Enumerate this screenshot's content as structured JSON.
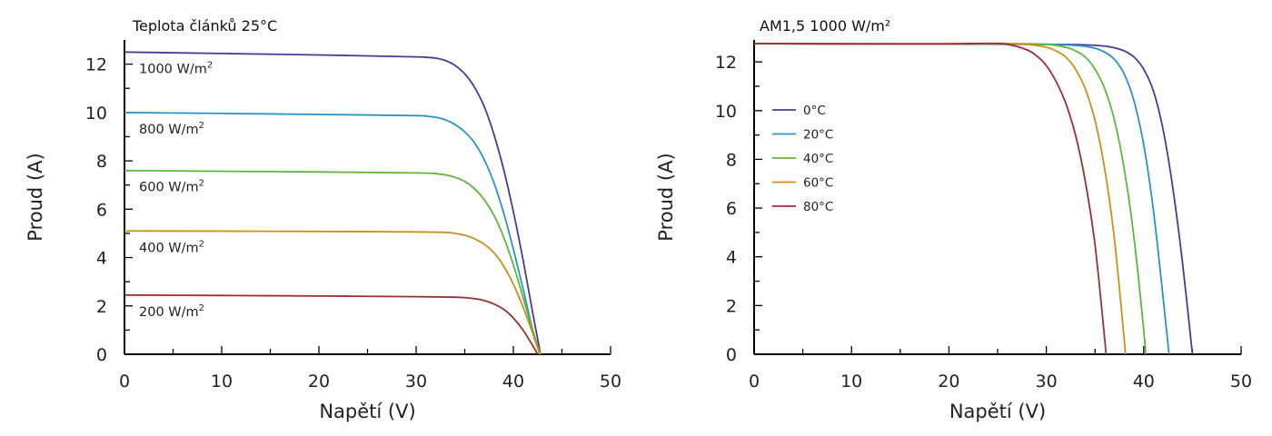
{
  "chart_data": [
    {
      "type": "line",
      "title": "Teplota článků 25°C",
      "xlabel": "Napětí (V)",
      "ylabel": "Proud (A)",
      "xlim": [
        0,
        50
      ],
      "ylim": [
        0,
        13
      ],
      "xticks": [
        "0",
        "10",
        "20",
        "30",
        "40",
        "50"
      ],
      "yticks": [
        "0",
        "2",
        "4",
        "6",
        "8",
        "10",
        "12"
      ],
      "label_style": "inline",
      "series": [
        {
          "name": "1000 W/m2",
          "color": "#4B3A96",
          "x": [
            0,
            10,
            20,
            30,
            31,
            32,
            33,
            34,
            35,
            36,
            37,
            38,
            39,
            40,
            41,
            42,
            42.8
          ],
          "y": [
            12.5,
            12.44,
            12.38,
            12.3,
            12.28,
            12.25,
            12.15,
            11.95,
            11.6,
            11.05,
            10.25,
            9.1,
            7.65,
            5.9,
            3.9,
            1.7,
            0
          ]
        },
        {
          "name": "800 W/m2",
          "color": "#2A93C7",
          "x": [
            0,
            10,
            20,
            30,
            31,
            32,
            33,
            34,
            35,
            36,
            37,
            38,
            39,
            40,
            41,
            42,
            42.8
          ],
          "y": [
            10.0,
            9.96,
            9.92,
            9.87,
            9.85,
            9.8,
            9.7,
            9.5,
            9.2,
            8.75,
            8.05,
            7.1,
            5.85,
            4.35,
            2.7,
            1.0,
            0
          ]
        },
        {
          "name": "600 W/m2",
          "color": "#5CB83A",
          "x": [
            0,
            10,
            20,
            30,
            32,
            33,
            34,
            35,
            36,
            37,
            38,
            39,
            40,
            41,
            42,
            42.8
          ],
          "y": [
            7.6,
            7.57,
            7.54,
            7.5,
            7.47,
            7.42,
            7.32,
            7.15,
            6.85,
            6.4,
            5.75,
            4.85,
            3.7,
            2.35,
            0.95,
            0
          ]
        },
        {
          "name": "400 W/m2",
          "color": "#C9901B",
          "x": [
            0,
            10,
            20,
            30,
            33,
            34,
            35,
            36,
            37,
            38,
            39,
            40,
            41,
            42,
            42.7
          ],
          "y": [
            5.1,
            5.09,
            5.08,
            5.06,
            5.04,
            5.0,
            4.92,
            4.78,
            4.55,
            4.2,
            3.65,
            2.9,
            1.95,
            0.85,
            0
          ]
        },
        {
          "name": "200 W/m2",
          "color": "#9E2E36",
          "x": [
            0,
            10,
            20,
            30,
            34,
            35,
            36,
            37,
            38,
            39,
            40,
            41,
            42,
            42.5
          ],
          "y": [
            2.45,
            2.43,
            2.41,
            2.38,
            2.36,
            2.34,
            2.3,
            2.22,
            2.08,
            1.86,
            1.5,
            1.0,
            0.35,
            0
          ]
        }
      ]
    },
    {
      "type": "line",
      "title": "AM1,5 1000 W/m²",
      "xlabel": "Napětí (V)",
      "ylabel": "Proud (A)",
      "xlim": [
        0,
        50
      ],
      "ylim": [
        0,
        12.9
      ],
      "xticks": [
        "0",
        "10",
        "20",
        "30",
        "40",
        "50"
      ],
      "yticks": [
        "0",
        "2",
        "4",
        "6",
        "8",
        "10",
        "12"
      ],
      "legend": "left",
      "series": [
        {
          "name": "0°C",
          "color": "#4B3A96",
          "x": [
            0,
            10,
            20,
            30,
            34,
            36,
            37,
            38,
            39,
            40,
            41,
            42,
            43,
            44,
            45
          ],
          "y": [
            12.75,
            12.74,
            12.73,
            12.72,
            12.7,
            12.65,
            12.58,
            12.45,
            12.2,
            11.7,
            10.8,
            9.2,
            6.8,
            3.7,
            0
          ]
        },
        {
          "name": "20°C",
          "color": "#2A93C7",
          "x": [
            0,
            10,
            20,
            28,
            32,
            34,
            35,
            36,
            37,
            38,
            39,
            40,
            41,
            42,
            42.6
          ],
          "y": [
            12.75,
            12.74,
            12.73,
            12.73,
            12.7,
            12.64,
            12.56,
            12.4,
            12.1,
            11.5,
            10.4,
            8.6,
            5.9,
            2.3,
            0
          ]
        },
        {
          "name": "40°C",
          "color": "#5CB83A",
          "x": [
            0,
            10,
            20,
            26,
            30,
            32,
            33,
            34,
            35,
            36,
            37,
            38,
            39,
            40,
            40.2
          ],
          "y": [
            12.75,
            12.74,
            12.74,
            12.75,
            12.72,
            12.6,
            12.45,
            12.2,
            11.7,
            10.9,
            9.6,
            7.6,
            4.8,
            1.0,
            0
          ]
        },
        {
          "name": "60°C",
          "color": "#C9901B",
          "x": [
            0,
            10,
            20,
            25,
            28,
            30,
            31,
            32,
            33,
            34,
            35,
            36,
            37,
            38,
            38.1
          ],
          "y": [
            12.75,
            12.74,
            12.74,
            12.76,
            12.72,
            12.6,
            12.45,
            12.2,
            11.7,
            10.9,
            9.6,
            7.6,
            4.7,
            0.6,
            0
          ]
        },
        {
          "name": "80°C",
          "color": "#9E2E36",
          "x": [
            0,
            10,
            20,
            24,
            26,
            28,
            29,
            30,
            31,
            32,
            33,
            34,
            35,
            36,
            36.1
          ],
          "y": [
            12.75,
            12.74,
            12.74,
            12.76,
            12.72,
            12.5,
            12.25,
            11.85,
            11.2,
            10.3,
            9.0,
            7.1,
            4.5,
            0.6,
            0
          ]
        }
      ]
    }
  ]
}
